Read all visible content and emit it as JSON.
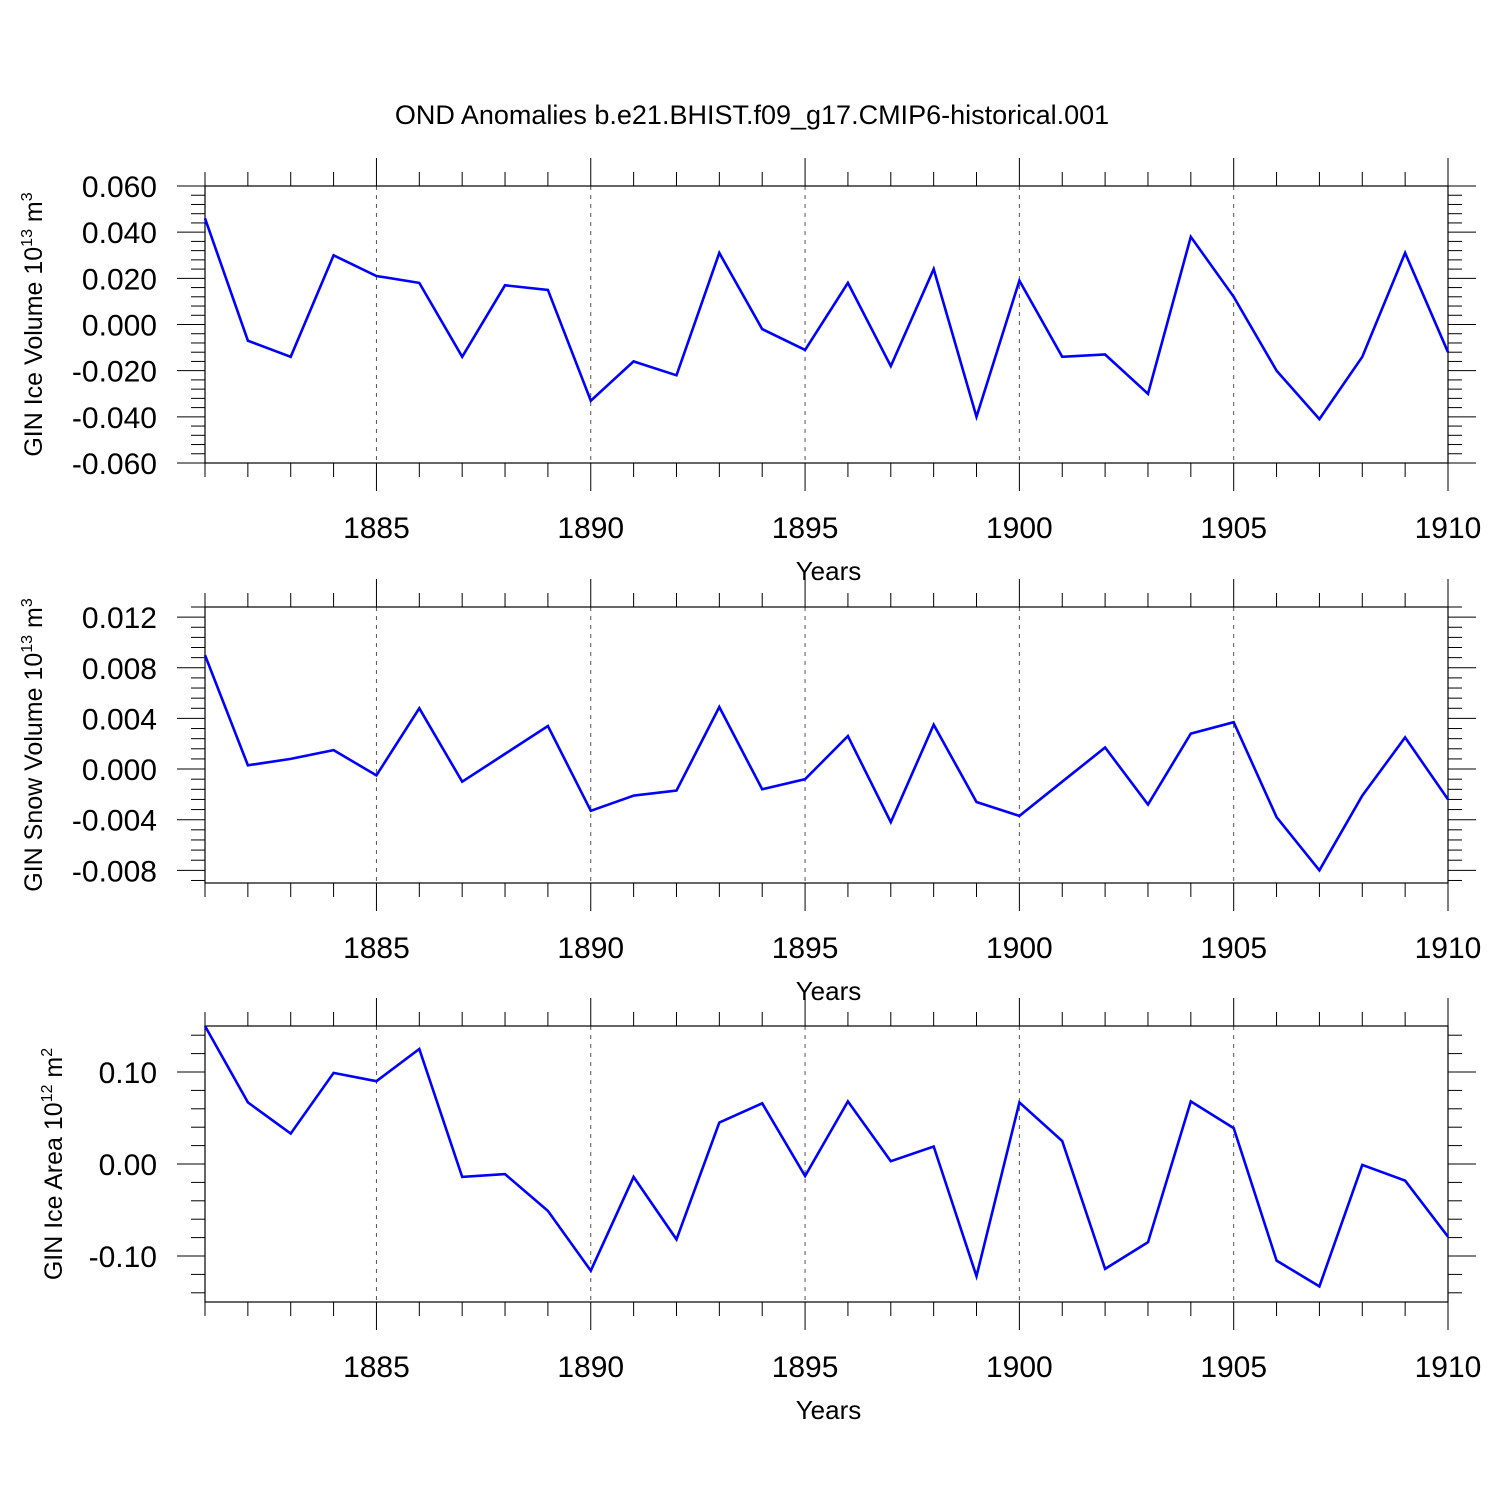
{
  "title": "OND Anomalies b.e21.BHIST.f09_g17.CMIP6-historical.001",
  "colors": {
    "line": "#0000ff",
    "axis": "#000000",
    "grid": "#555555"
  },
  "chart_data": [
    {
      "type": "line",
      "ylabel": {
        "pre": "GIN Ice Volume 10",
        "sup1": "13",
        "mid": " m",
        "sup2": "3"
      },
      "xlabel": "Years",
      "xlim": [
        1881,
        1910
      ],
      "ylim": [
        -0.06,
        0.06
      ],
      "xticks": [
        1885,
        1890,
        1895,
        1900,
        1905,
        1910
      ],
      "xtick_labels": [
        "1885",
        "1890",
        "1895",
        "1900",
        "1905",
        "1910"
      ],
      "yticks": [
        -0.06,
        -0.04,
        -0.02,
        0.0,
        0.02,
        0.04,
        0.06
      ],
      "ytick_labels": [
        "-0.060",
        "-0.040",
        "-0.020",
        "0.000",
        "0.020",
        "0.040",
        "0.060"
      ],
      "grid": "vertical dashed at major x ticks",
      "series": [
        {
          "x": [
            1881,
            1882,
            1883,
            1884,
            1885,
            1886,
            1887,
            1888,
            1889,
            1890,
            1891,
            1892,
            1893,
            1894,
            1895,
            1896,
            1897,
            1898,
            1899,
            1900,
            1901,
            1902,
            1903,
            1904,
            1905,
            1906,
            1907,
            1908,
            1909,
            1910
          ],
          "values": [
            0.046,
            -0.007,
            -0.014,
            0.03,
            0.021,
            0.018,
            -0.014,
            0.017,
            0.015,
            -0.033,
            -0.016,
            -0.022,
            0.031,
            -0.002,
            -0.011,
            0.018,
            -0.018,
            0.024,
            -0.04,
            0.019,
            -0.014,
            -0.013,
            -0.03,
            0.038,
            0.012,
            -0.02,
            -0.041,
            -0.014,
            0.031,
            -0.012
          ]
        }
      ]
    },
    {
      "type": "line",
      "ylabel": {
        "pre": "GIN Snow Volume 10",
        "sup1": "13",
        "mid": " m",
        "sup2": "3"
      },
      "xlabel": "Years",
      "xlim": [
        1881,
        1910
      ],
      "ylim": [
        -0.009,
        0.0128
      ],
      "xticks": [
        1885,
        1890,
        1895,
        1900,
        1905,
        1910
      ],
      "xtick_labels": [
        "1885",
        "1890",
        "1895",
        "1900",
        "1905",
        "1910"
      ],
      "yticks": [
        -0.008,
        -0.004,
        0.0,
        0.004,
        0.008,
        0.012
      ],
      "ytick_labels": [
        "-0.008",
        "-0.004",
        "0.000",
        "0.004",
        "0.008",
        "0.012"
      ],
      "grid": "vertical dashed at major x ticks",
      "series": [
        {
          "x": [
            1881,
            1882,
            1883,
            1884,
            1885,
            1886,
            1887,
            1888,
            1889,
            1890,
            1891,
            1892,
            1893,
            1894,
            1895,
            1896,
            1897,
            1898,
            1899,
            1900,
            1901,
            1902,
            1903,
            1904,
            1905,
            1906,
            1907,
            1908,
            1909,
            1910
          ],
          "values": [
            0.009,
            0.0003,
            0.0008,
            0.0015,
            -0.0005,
            0.0048,
            -0.001,
            0.0012,
            0.0034,
            -0.0033,
            -0.0021,
            -0.0017,
            0.0049,
            -0.0016,
            -0.0008,
            0.0026,
            -0.0042,
            0.0035,
            -0.0026,
            -0.0037,
            -0.001,
            0.0017,
            -0.0028,
            0.0028,
            0.0037,
            -0.0038,
            -0.008,
            -0.0021,
            0.0025,
            -0.0024
          ]
        }
      ]
    },
    {
      "type": "line",
      "ylabel": {
        "pre": "GIN Ice Area 10",
        "sup1": "12",
        "mid": " m",
        "sup2": "2"
      },
      "xlabel": "Years",
      "xlim": [
        1881,
        1910
      ],
      "ylim": [
        -0.15,
        0.15
      ],
      "xticks": [
        1885,
        1890,
        1895,
        1900,
        1905,
        1910
      ],
      "xtick_labels": [
        "1885",
        "1890",
        "1895",
        "1900",
        "1905",
        "1910"
      ],
      "yticks": [
        -0.1,
        0.0,
        0.1
      ],
      "ytick_labels": [
        "-0.10",
        "0.00",
        "0.10"
      ],
      "grid": "vertical dashed at major x ticks",
      "series": [
        {
          "x": [
            1881,
            1882,
            1883,
            1884,
            1885,
            1886,
            1887,
            1888,
            1889,
            1890,
            1891,
            1892,
            1893,
            1894,
            1895,
            1896,
            1897,
            1898,
            1899,
            1900,
            1901,
            1902,
            1903,
            1904,
            1905,
            1906,
            1907,
            1908,
            1909,
            1910
          ],
          "values": [
            0.15,
            0.067,
            0.033,
            0.099,
            0.09,
            0.125,
            -0.014,
            -0.011,
            -0.051,
            -0.116,
            -0.014,
            -0.082,
            0.045,
            0.066,
            -0.013,
            0.068,
            0.003,
            0.019,
            -0.122,
            0.067,
            0.025,
            -0.114,
            -0.085,
            0.068,
            0.039,
            -0.105,
            -0.133,
            -0.001,
            -0.018,
            -0.079
          ]
        }
      ]
    }
  ]
}
